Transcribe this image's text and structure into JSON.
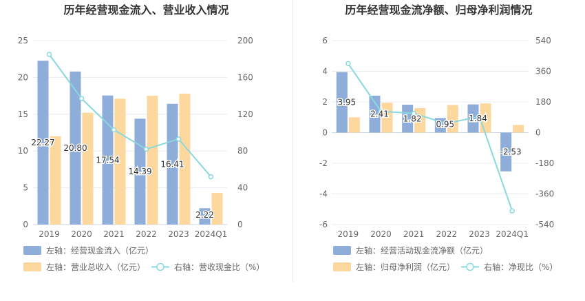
{
  "chart_data": [
    {
      "type": "bar+line",
      "title": "历年经营现金流入、营业收入情况",
      "categories": [
        "2019",
        "2020",
        "2021",
        "2022",
        "2023",
        "2024Q1"
      ],
      "left_axis": {
        "ticks": [
          "0",
          "5",
          "10",
          "15",
          "20",
          "25"
        ],
        "ylim": [
          0,
          25
        ]
      },
      "right_axis": {
        "ticks": [
          "0",
          "40",
          "80",
          "120",
          "160",
          "200"
        ],
        "ylim": [
          0,
          200
        ]
      },
      "series": [
        {
          "name": "左轴：经营现金流入（亿元）",
          "type": "bar",
          "axis": "left",
          "color": "#8eadd9",
          "values": [
            22.27,
            20.8,
            17.54,
            14.39,
            16.41,
            2.22
          ],
          "labels": [
            "22.27",
            "20.80",
            "17.54",
            "14.39",
            "16.41",
            "2.22"
          ]
        },
        {
          "name": "左轴：营业总收入（亿元）",
          "type": "bar",
          "axis": "left",
          "color": "#fdd89e",
          "values": [
            12.0,
            15.2,
            17.1,
            17.5,
            17.8,
            4.3
          ]
        },
        {
          "name": "右轴：营收现金比（%）",
          "type": "line",
          "axis": "right",
          "color": "#88d8dc",
          "values": [
            185.0,
            137.0,
            103.0,
            82.0,
            93.0,
            52.0
          ]
        }
      ],
      "legend": "bottom",
      "grid": true
    },
    {
      "type": "bar+line",
      "title": "历年经营现金流净额、归母净利润情况",
      "categories": [
        "2019",
        "2020",
        "2021",
        "2022",
        "2023",
        "2024Q1"
      ],
      "left_axis": {
        "ticks": [
          "-6",
          "-4",
          "-2",
          "0",
          "2",
          "4",
          "6"
        ],
        "ylim": [
          -6,
          6
        ]
      },
      "right_axis": {
        "ticks": [
          "-540",
          "-360",
          "-180",
          "0",
          "180",
          "360",
          "540"
        ],
        "ylim": [
          -540,
          540
        ]
      },
      "series": [
        {
          "name": "左轴：经营活动现金流净额（亿元）",
          "type": "bar",
          "axis": "left",
          "color": "#8eadd9",
          "values": [
            3.95,
            2.41,
            1.82,
            0.95,
            1.84,
            -2.53
          ],
          "labels": [
            "3.95",
            "2.41",
            "1.82",
            "0.95",
            "1.84",
            "-2.53"
          ]
        },
        {
          "name": "左轴：归母净利润（亿元）",
          "type": "bar",
          "axis": "left",
          "color": "#fdd89e",
          "values": [
            1.0,
            1.95,
            1.6,
            1.8,
            1.9,
            0.5
          ]
        },
        {
          "name": "右轴：净现比（%）",
          "type": "line",
          "axis": "right",
          "color": "#88d8dc",
          "values": [
            405.0,
            125.0,
            113.0,
            53.0,
            95.0,
            -460.0
          ]
        }
      ],
      "legend": "bottom",
      "grid": true
    }
  ]
}
